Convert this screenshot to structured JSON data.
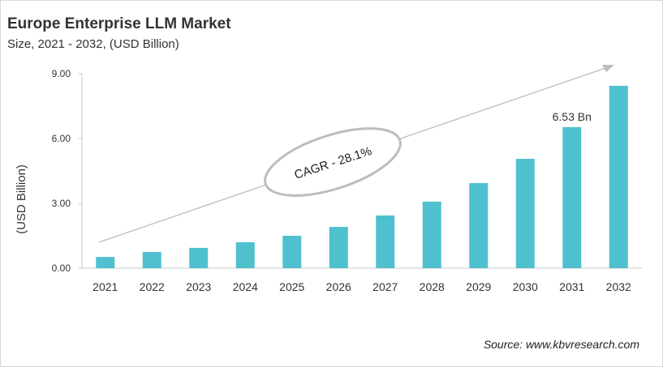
{
  "chart_data": {
    "type": "bar",
    "title": "Europe Enterprise LLM Market",
    "subtitle": "Size, 2021 - 2032, (USD Billion)",
    "xlabel": "",
    "ylabel": "(USD Billion)",
    "categories": [
      "2021",
      "2022",
      "2023",
      "2024",
      "2025",
      "2026",
      "2027",
      "2028",
      "2029",
      "2030",
      "2031",
      "2032"
    ],
    "values": [
      0.52,
      0.75,
      0.94,
      1.2,
      1.5,
      1.91,
      2.44,
      3.08,
      3.94,
      5.06,
      6.53,
      8.44
    ],
    "ylim": [
      0,
      9
    ],
    "yticks": [
      "0.00",
      "3.00",
      "6.00",
      "9.00"
    ],
    "grid": false,
    "bar_color": "#4FC1CE",
    "data_labels": [
      {
        "category": "2031",
        "text": "6.53 Bn"
      }
    ],
    "annotation": "CAGR - 28.1%",
    "source": "Source: www.kbvresearch.com"
  }
}
